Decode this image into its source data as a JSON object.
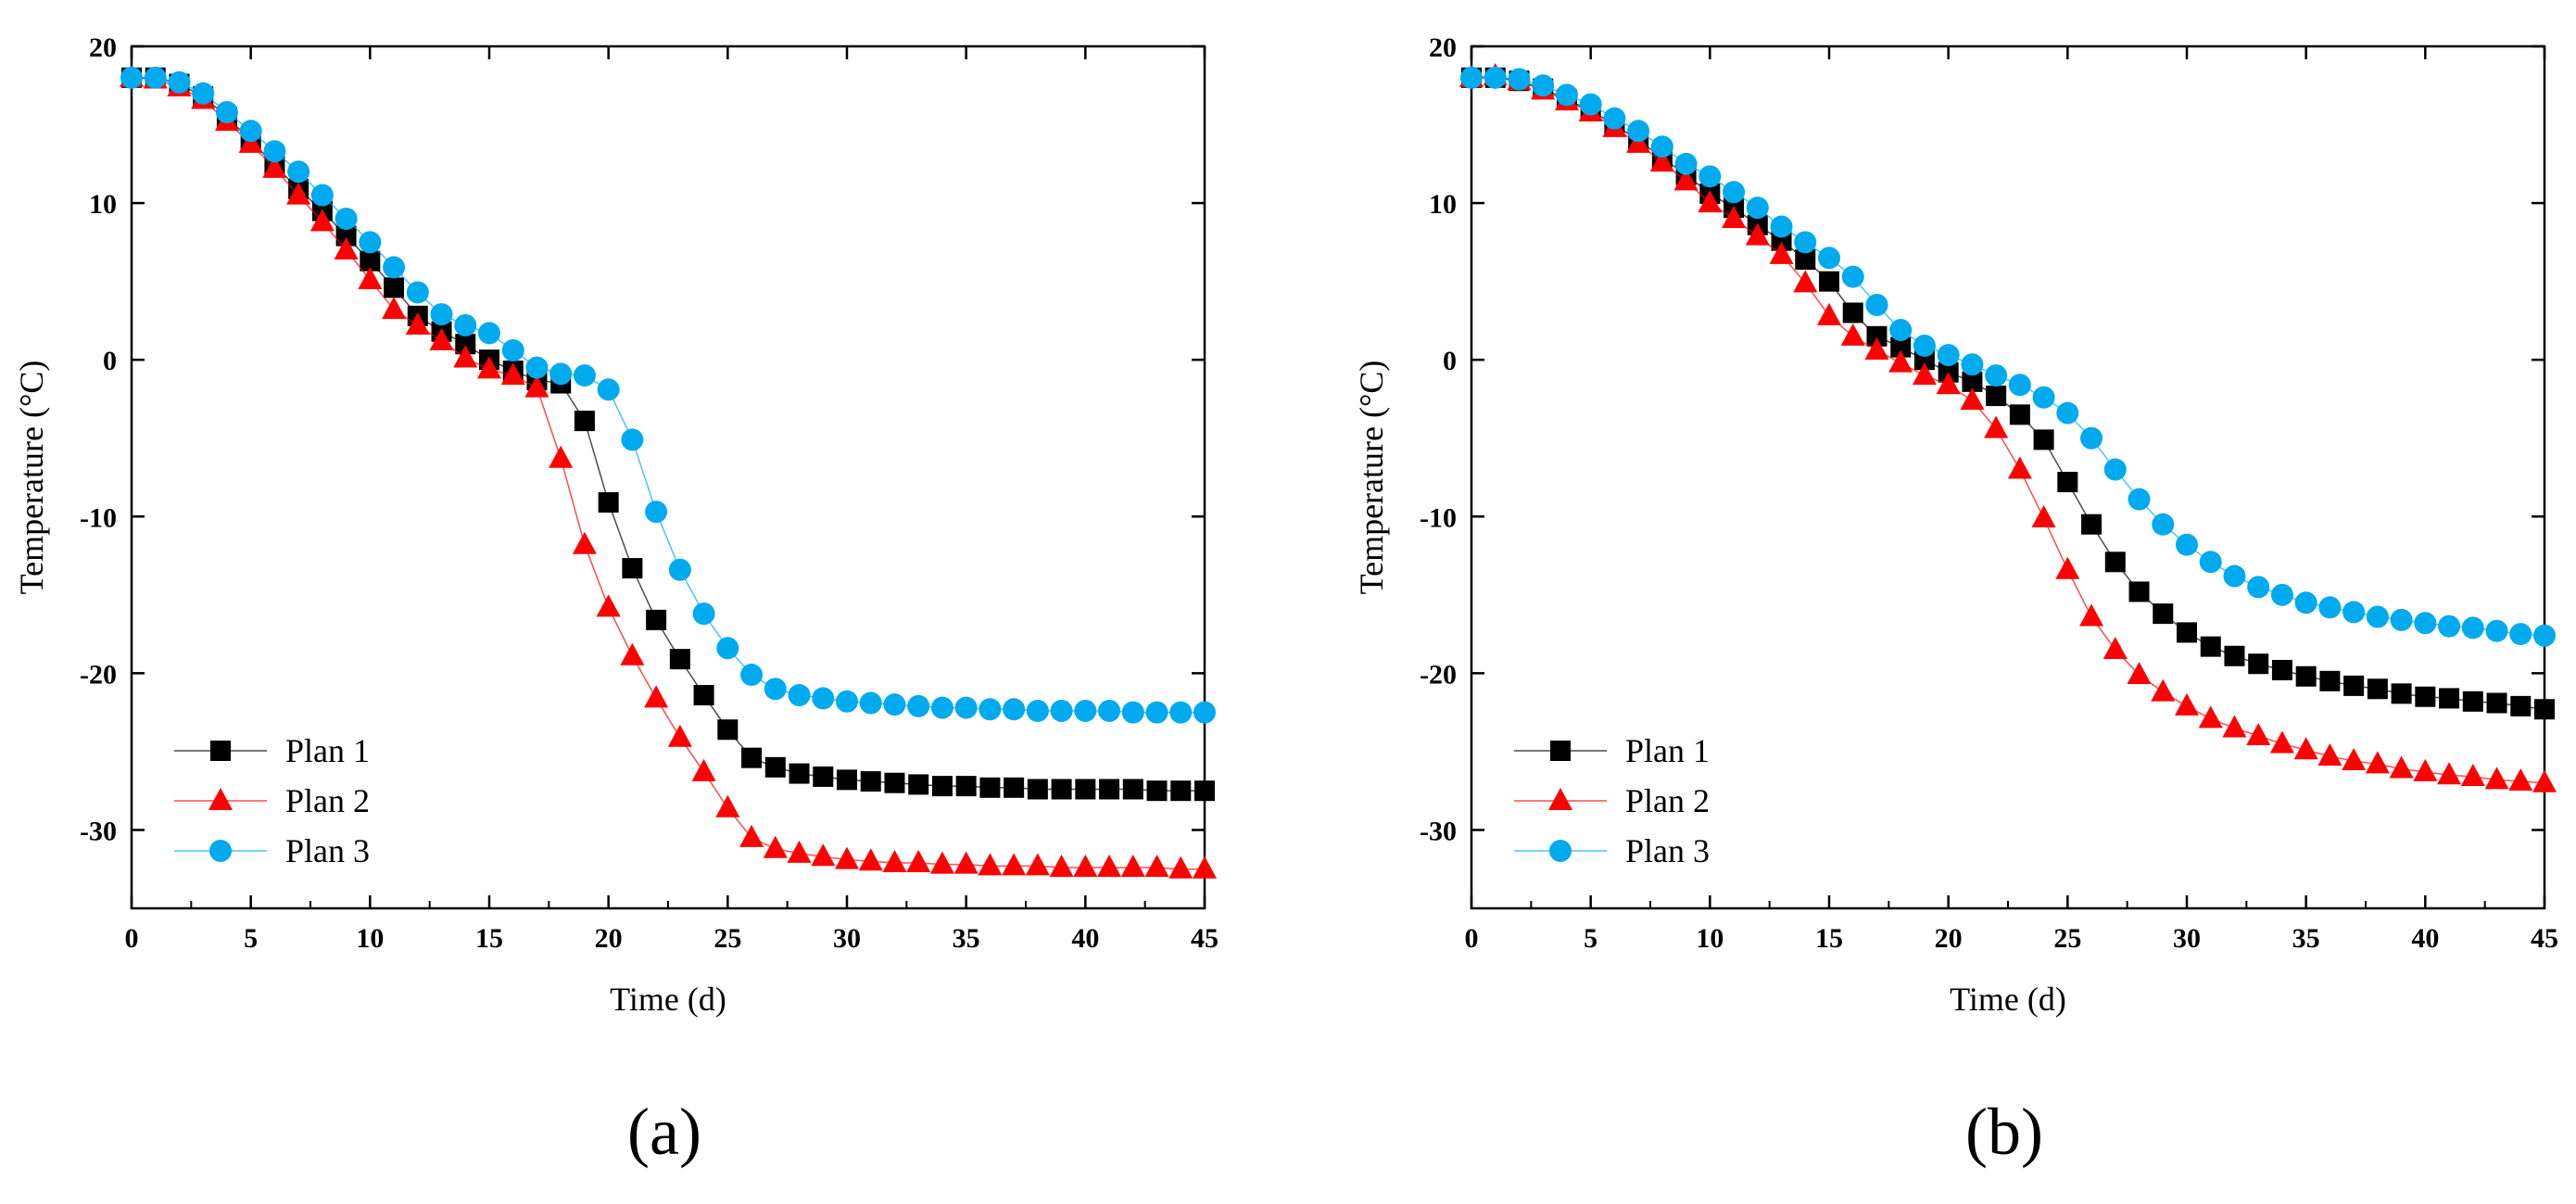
{
  "chart_data": [
    {
      "type": "line",
      "panel_label": "(a)",
      "xlabel": "Time (d)",
      "ylabel": "Temperature (°C)",
      "xlim": [
        0,
        45
      ],
      "ylim": [
        -35,
        20
      ],
      "xticks": [
        0,
        5,
        10,
        15,
        20,
        25,
        30,
        35,
        40,
        45
      ],
      "yticks": [
        20,
        10,
        0,
        -10,
        -20,
        -30
      ],
      "legend_position": "bottom-left",
      "x": [
        0,
        1,
        2,
        3,
        4,
        5,
        6,
        7,
        8,
        9,
        10,
        11,
        12,
        13,
        14,
        15,
        16,
        17,
        18,
        19,
        20,
        21,
        22,
        23,
        24,
        25,
        26,
        27,
        28,
        29,
        30,
        31,
        32,
        33,
        34,
        35,
        36,
        37,
        38,
        39,
        40,
        41,
        42,
        43,
        44,
        45
      ],
      "series": [
        {
          "name": "Plan 1",
          "color": "#000000",
          "marker": "square",
          "values": [
            18,
            18,
            17.6,
            16.8,
            15.5,
            14,
            12.4,
            10.9,
            9.5,
            7.9,
            6.3,
            4.6,
            2.8,
            1.8,
            1,
            0,
            -0.7,
            -1.3,
            -1.5,
            -3.9,
            -9.1,
            -13.3,
            -16.6,
            -19.1,
            -21.4,
            -23.6,
            -25.4,
            -26,
            -26.4,
            -26.6,
            -26.8,
            -26.9,
            -27,
            -27.1,
            -27.2,
            -27.2,
            -27.3,
            -27.3,
            -27.4,
            -27.4,
            -27.4,
            -27.4,
            -27.4,
            -27.5,
            -27.5,
            -27.5
          ]
        },
        {
          "name": "Plan 2",
          "color": "#ff0000",
          "marker": "triangle",
          "values": [
            18,
            17.9,
            17.4,
            16.6,
            15.2,
            13.8,
            12.2,
            10.5,
            8.8,
            7,
            5.1,
            3.2,
            2.2,
            1.2,
            0.1,
            -0.6,
            -1,
            -1.8,
            -6.3,
            -11.8,
            -15.8,
            -18.9,
            -21.6,
            -24.1,
            -26.3,
            -28.6,
            -30.5,
            -31.2,
            -31.5,
            -31.7,
            -31.9,
            -32,
            -32.1,
            -32.1,
            -32.2,
            -32.2,
            -32.3,
            -32.3,
            -32.3,
            -32.4,
            -32.4,
            -32.4,
            -32.4,
            -32.4,
            -32.5,
            -32.5
          ]
        },
        {
          "name": "Plan 3",
          "color": "#00aaee",
          "marker": "circle",
          "values": [
            18,
            18,
            17.7,
            17,
            15.8,
            14.6,
            13.3,
            12,
            10.5,
            9,
            7.5,
            5.9,
            4.3,
            2.9,
            2.2,
            1.7,
            0.6,
            -0.5,
            -0.9,
            -1,
            -1.9,
            -5.1,
            -9.7,
            -13.4,
            -16.2,
            -18.4,
            -20.1,
            -21,
            -21.4,
            -21.6,
            -21.8,
            -21.9,
            -22,
            -22.1,
            -22.2,
            -22.2,
            -22.3,
            -22.3,
            -22.4,
            -22.4,
            -22.4,
            -22.4,
            -22.5,
            -22.5,
            -22.5,
            -22.5
          ]
        }
      ]
    },
    {
      "type": "line",
      "panel_label": "(b)",
      "xlabel": "Time (d)",
      "ylabel": "Temperature (°C)",
      "xlim": [
        0,
        45
      ],
      "ylim": [
        -35,
        20
      ],
      "xticks": [
        0,
        5,
        10,
        15,
        20,
        25,
        30,
        35,
        40,
        45
      ],
      "yticks": [
        20,
        10,
        0,
        -10,
        -20,
        -30
      ],
      "legend_position": "bottom-left",
      "x": [
        0,
        1,
        2,
        3,
        4,
        5,
        6,
        7,
        8,
        9,
        10,
        11,
        12,
        13,
        14,
        15,
        16,
        17,
        18,
        19,
        20,
        21,
        22,
        23,
        24,
        25,
        26,
        27,
        28,
        29,
        30,
        31,
        32,
        33,
        34,
        35,
        36,
        37,
        38,
        39,
        40,
        41,
        42,
        43,
        44,
        45
      ],
      "series": [
        {
          "name": "Plan 1",
          "color": "#000000",
          "marker": "square",
          "values": [
            18,
            18,
            17.8,
            17.3,
            16.6,
            15.9,
            15,
            14,
            12.9,
            11.8,
            10.6,
            9.7,
            8.6,
            7.6,
            6.4,
            5,
            3,
            1.5,
            0.8,
            0,
            -0.8,
            -1.4,
            -2.3,
            -3.5,
            -5.1,
            -7.8,
            -10.5,
            -12.9,
            -14.8,
            -16.2,
            -17.4,
            -18.3,
            -18.9,
            -19.4,
            -19.8,
            -20.2,
            -20.5,
            -20.8,
            -21,
            -21.3,
            -21.5,
            -21.6,
            -21.8,
            -21.9,
            -22.1,
            -22.3
          ]
        },
        {
          "name": "Plan 2",
          "color": "#ff0000",
          "marker": "triangle",
          "values": [
            18,
            18.1,
            17.8,
            17.2,
            16.5,
            15.8,
            14.8,
            13.8,
            12.6,
            11.4,
            10,
            9,
            7.9,
            6.7,
            4.9,
            2.8,
            1.5,
            0.6,
            -0.2,
            -1,
            -1.6,
            -2.6,
            -4.4,
            -7,
            -10.1,
            -13.4,
            -16.4,
            -18.5,
            -20.1,
            -21.2,
            -22.1,
            -22.9,
            -23.5,
            -24,
            -24.5,
            -24.9,
            -25.3,
            -25.6,
            -25.8,
            -26.1,
            -26.3,
            -26.5,
            -26.6,
            -26.8,
            -26.9,
            -27
          ]
        },
        {
          "name": "Plan 3",
          "color": "#00aaee",
          "marker": "circle",
          "values": [
            18,
            18,
            17.9,
            17.5,
            16.9,
            16.3,
            15.4,
            14.6,
            13.6,
            12.5,
            11.7,
            10.7,
            9.7,
            8.5,
            7.5,
            6.5,
            5.3,
            3.5,
            1.9,
            0.9,
            0.3,
            -0.3,
            -1,
            -1.6,
            -2.4,
            -3.4,
            -5,
            -7,
            -8.9,
            -10.5,
            -11.8,
            -12.9,
            -13.8,
            -14.5,
            -15,
            -15.5,
            -15.8,
            -16.1,
            -16.4,
            -16.6,
            -16.8,
            -17,
            -17.1,
            -17.3,
            -17.5,
            -17.6
          ]
        }
      ]
    }
  ]
}
